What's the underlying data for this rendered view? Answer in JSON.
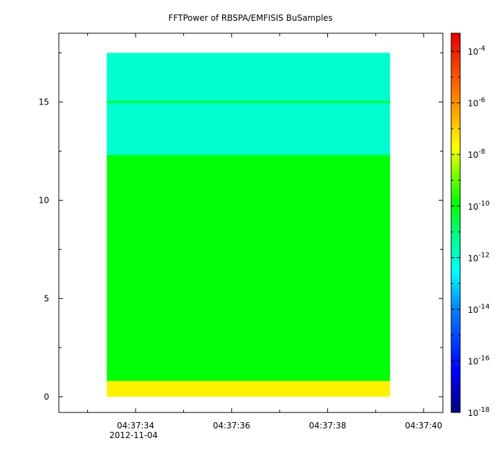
{
  "chart_data": {
    "type": "heatmap",
    "title": "FFTPower of RBSPA/EMFISIS  BuSamples",
    "x_axis": {
      "ticks": [
        "04:37:34",
        "04:37:36",
        "04:37:38",
        "04:37:40"
      ],
      "tick_seconds": [
        34,
        36,
        38,
        40
      ],
      "range_seconds": [
        32.4,
        40.4
      ],
      "date_label": "2012-11-04"
    },
    "y_axis": {
      "ticks": [
        "0",
        "5",
        "10",
        "15"
      ],
      "tick_values": [
        0,
        5,
        10,
        15
      ],
      "range": [
        -0.8,
        18.5
      ]
    },
    "colorbar": {
      "scale": "log",
      "range_exponent": [
        -18,
        -3.3
      ],
      "ticks": [
        {
          "base": "10",
          "exp": "-4",
          "value_exp": -4
        },
        {
          "base": "10",
          "exp": "-6",
          "value_exp": -6
        },
        {
          "base": "10",
          "exp": "-8",
          "value_exp": -8
        },
        {
          "base": "10",
          "exp": "-10",
          "value_exp": -10
        },
        {
          "base": "10",
          "exp": "-12",
          "value_exp": -12
        },
        {
          "base": "10",
          "exp": "-14",
          "value_exp": -14
        },
        {
          "base": "10",
          "exp": "-16",
          "value_exp": -16
        },
        {
          "base": "10",
          "exp": "-18",
          "value_exp": -18
        }
      ]
    },
    "data_extent": {
      "x_seconds": [
        33.4,
        39.3
      ],
      "y": [
        0,
        17.5
      ]
    },
    "bands": [
      {
        "y_from": 12.3,
        "y_to": 17.5,
        "log10_power": -12.0
      },
      {
        "y_from": 0.8,
        "y_to": 12.3,
        "log10_power": -10.0
      },
      {
        "y_from": 0.0,
        "y_to": 0.8,
        "log10_power": -7.5
      }
    ],
    "lines": [
      {
        "y": 15.0,
        "log10_power": -10.3
      }
    ],
    "grid": false
  }
}
